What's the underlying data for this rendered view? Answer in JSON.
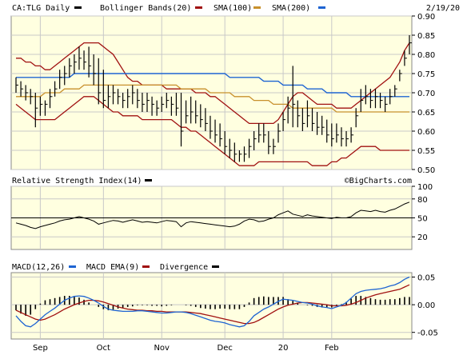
{
  "header": {
    "symbol": "CA:TLG Daily",
    "indicator1": "Bollinger Bands(20)",
    "indicator2": "SMA(100)",
    "indicator3": "SMA(200)",
    "date": "2/19/20"
  },
  "rsi_header": {
    "title": "Relative Strength Index(14)",
    "credit": "©BigCharts.com"
  },
  "macd_header": {
    "title": "MACD(12,26)",
    "ema": "MACD EMA(9)",
    "divergence": "Divergence"
  },
  "colors": {
    "background": "#ffffe0",
    "price": "#000000",
    "bollinger": "#a01010",
    "sma100": "#c8902c",
    "sma200": "#1e64d2",
    "macd": "#1e64d2",
    "macd_ema": "#a01010",
    "grid": "#c8c8c8"
  },
  "x_axis": {
    "labels": [
      "Sep",
      "Oct",
      "Nov",
      "Dec",
      "20",
      "Feb"
    ]
  },
  "chart_data": [
    {
      "type": "line",
      "panel": "price",
      "title": "CA:TLG Daily",
      "y_ticks": [
        0.5,
        0.55,
        0.6,
        0.65,
        0.7,
        0.75,
        0.8,
        0.85,
        0.9
      ],
      "y_tick_labels": [
        "0.50",
        "0.55",
        "0.60",
        "0.65",
        "0.70",
        "0.75",
        "0.80",
        "0.85",
        "0.90"
      ],
      "ylim": [
        0.5,
        0.9
      ],
      "x_labels": [
        "Sep",
        "Oct",
        "Nov",
        "Dec",
        "20",
        "Feb"
      ],
      "series": [
        {
          "name": "CA:TLG Daily",
          "kind": "ohlc",
          "high": [
            0.74,
            0.73,
            0.72,
            0.71,
            0.7,
            0.69,
            0.68,
            0.71,
            0.73,
            0.76,
            0.77,
            0.79,
            0.8,
            0.82,
            0.81,
            0.82,
            0.8,
            0.79,
            0.76,
            0.72,
            0.72,
            0.71,
            0.7,
            0.71,
            0.72,
            0.71,
            0.7,
            0.7,
            0.69,
            0.68,
            0.69,
            0.7,
            0.69,
            0.7,
            0.7,
            0.68,
            0.69,
            0.68,
            0.67,
            0.66,
            0.64,
            0.63,
            0.62,
            0.6,
            0.58,
            0.57,
            0.55,
            0.56,
            0.58,
            0.6,
            0.62,
            0.62,
            0.6,
            0.58,
            0.62,
            0.65,
            0.69,
            0.77,
            0.68,
            0.66,
            0.68,
            0.66,
            0.65,
            0.64,
            0.63,
            0.62,
            0.62,
            0.61,
            0.6,
            0.61,
            0.66,
            0.71,
            0.72,
            0.71,
            0.71,
            0.7,
            0.69,
            0.71,
            0.72,
            0.76,
            0.81,
            0.85
          ],
          "low": [
            0.7,
            0.69,
            0.68,
            0.67,
            0.61,
            0.64,
            0.64,
            0.66,
            0.69,
            0.71,
            0.72,
            0.74,
            0.75,
            0.76,
            0.76,
            0.74,
            0.72,
            0.67,
            0.66,
            0.66,
            0.67,
            0.67,
            0.66,
            0.66,
            0.67,
            0.66,
            0.65,
            0.65,
            0.64,
            0.64,
            0.65,
            0.66,
            0.64,
            0.64,
            0.56,
            0.62,
            0.62,
            0.62,
            0.61,
            0.6,
            0.58,
            0.57,
            0.56,
            0.54,
            0.53,
            0.52,
            0.52,
            0.52,
            0.53,
            0.55,
            0.57,
            0.57,
            0.54,
            0.54,
            0.57,
            0.6,
            0.62,
            0.61,
            0.61,
            0.6,
            0.61,
            0.6,
            0.59,
            0.59,
            0.57,
            0.56,
            0.57,
            0.56,
            0.56,
            0.57,
            0.61,
            0.65,
            0.67,
            0.66,
            0.66,
            0.66,
            0.65,
            0.67,
            0.69,
            0.73,
            0.77,
            0.8
          ],
          "close": [
            0.72,
            0.71,
            0.7,
            0.69,
            0.66,
            0.67,
            0.67,
            0.69,
            0.71,
            0.74,
            0.75,
            0.77,
            0.78,
            0.79,
            0.78,
            0.77,
            0.75,
            0.7,
            0.68,
            0.69,
            0.7,
            0.69,
            0.68,
            0.69,
            0.7,
            0.68,
            0.67,
            0.68,
            0.67,
            0.66,
            0.67,
            0.68,
            0.67,
            0.66,
            0.6,
            0.64,
            0.65,
            0.64,
            0.63,
            0.62,
            0.6,
            0.59,
            0.58,
            0.56,
            0.55,
            0.54,
            0.54,
            0.54,
            0.56,
            0.58,
            0.59,
            0.59,
            0.56,
            0.56,
            0.6,
            0.63,
            0.66,
            0.67,
            0.64,
            0.62,
            0.64,
            0.62,
            0.61,
            0.61,
            0.59,
            0.58,
            0.59,
            0.58,
            0.58,
            0.59,
            0.64,
            0.68,
            0.69,
            0.68,
            0.69,
            0.68,
            0.67,
            0.69,
            0.71,
            0.75,
            0.79,
            0.83
          ]
        },
        {
          "name": "Bollinger Bands(20) upper",
          "kind": "line",
          "values": [
            0.79,
            0.79,
            0.78,
            0.78,
            0.77,
            0.77,
            0.76,
            0.76,
            0.77,
            0.78,
            0.79,
            0.8,
            0.81,
            0.82,
            0.83,
            0.83,
            0.83,
            0.83,
            0.82,
            0.81,
            0.8,
            0.78,
            0.76,
            0.74,
            0.73,
            0.73,
            0.72,
            0.72,
            0.72,
            0.72,
            0.72,
            0.71,
            0.71,
            0.71,
            0.71,
            0.71,
            0.71,
            0.7,
            0.7,
            0.7,
            0.69,
            0.69,
            0.68,
            0.67,
            0.66,
            0.65,
            0.64,
            0.63,
            0.62,
            0.62,
            0.62,
            0.62,
            0.62,
            0.62,
            0.63,
            0.65,
            0.67,
            0.69,
            0.7,
            0.7,
            0.69,
            0.68,
            0.67,
            0.67,
            0.67,
            0.67,
            0.66,
            0.66,
            0.66,
            0.66,
            0.67,
            0.68,
            0.69,
            0.7,
            0.71,
            0.72,
            0.73,
            0.74,
            0.76,
            0.78,
            0.81,
            0.83
          ]
        },
        {
          "name": "Bollinger Bands(20) lower",
          "kind": "line",
          "values": [
            0.67,
            0.66,
            0.65,
            0.64,
            0.63,
            0.63,
            0.63,
            0.63,
            0.63,
            0.64,
            0.65,
            0.66,
            0.67,
            0.68,
            0.69,
            0.69,
            0.69,
            0.68,
            0.67,
            0.66,
            0.65,
            0.65,
            0.64,
            0.64,
            0.64,
            0.64,
            0.63,
            0.63,
            0.63,
            0.63,
            0.63,
            0.63,
            0.63,
            0.62,
            0.61,
            0.61,
            0.6,
            0.6,
            0.59,
            0.58,
            0.57,
            0.56,
            0.55,
            0.54,
            0.53,
            0.52,
            0.51,
            0.51,
            0.51,
            0.51,
            0.52,
            0.52,
            0.52,
            0.52,
            0.52,
            0.52,
            0.52,
            0.52,
            0.52,
            0.52,
            0.52,
            0.51,
            0.51,
            0.51,
            0.51,
            0.52,
            0.52,
            0.53,
            0.53,
            0.54,
            0.55,
            0.56,
            0.56,
            0.56,
            0.56,
            0.55,
            0.55,
            0.55,
            0.55,
            0.55,
            0.55,
            0.55
          ]
        },
        {
          "name": "SMA(100)",
          "kind": "line",
          "values": [
            0.69,
            0.69,
            0.69,
            0.69,
            0.69,
            0.69,
            0.7,
            0.7,
            0.7,
            0.7,
            0.71,
            0.71,
            0.71,
            0.71,
            0.72,
            0.72,
            0.72,
            0.72,
            0.72,
            0.72,
            0.72,
            0.72,
            0.72,
            0.72,
            0.72,
            0.72,
            0.72,
            0.72,
            0.72,
            0.72,
            0.72,
            0.72,
            0.72,
            0.72,
            0.71,
            0.71,
            0.71,
            0.71,
            0.71,
            0.71,
            0.7,
            0.7,
            0.7,
            0.7,
            0.7,
            0.69,
            0.69,
            0.69,
            0.69,
            0.68,
            0.68,
            0.68,
            0.68,
            0.67,
            0.67,
            0.67,
            0.67,
            0.66,
            0.66,
            0.66,
            0.66,
            0.66,
            0.66,
            0.66,
            0.66,
            0.66,
            0.65,
            0.65,
            0.65,
            0.65,
            0.65,
            0.65,
            0.65,
            0.65,
            0.65,
            0.65,
            0.65,
            0.65,
            0.65,
            0.65,
            0.65,
            0.65
          ]
        },
        {
          "name": "SMA(200)",
          "kind": "line",
          "values": [
            0.74,
            0.74,
            0.74,
            0.74,
            0.74,
            0.74,
            0.74,
            0.74,
            0.74,
            0.74,
            0.74,
            0.74,
            0.75,
            0.75,
            0.75,
            0.75,
            0.75,
            0.75,
            0.75,
            0.75,
            0.75,
            0.75,
            0.75,
            0.75,
            0.75,
            0.75,
            0.75,
            0.75,
            0.75,
            0.75,
            0.75,
            0.75,
            0.75,
            0.75,
            0.75,
            0.75,
            0.75,
            0.75,
            0.75,
            0.75,
            0.75,
            0.75,
            0.75,
            0.75,
            0.74,
            0.74,
            0.74,
            0.74,
            0.74,
            0.74,
            0.74,
            0.73,
            0.73,
            0.73,
            0.73,
            0.72,
            0.72,
            0.72,
            0.72,
            0.72,
            0.71,
            0.71,
            0.71,
            0.71,
            0.7,
            0.7,
            0.7,
            0.7,
            0.7,
            0.69,
            0.69,
            0.69,
            0.69,
            0.69,
            0.69,
            0.69,
            0.69,
            0.69,
            0.69,
            0.69,
            0.69,
            0.69
          ]
        }
      ]
    },
    {
      "type": "line",
      "panel": "rsi",
      "title": "Relative Strength Index(14)",
      "y_ticks": [
        20,
        50,
        80,
        100
      ],
      "y_tick_labels": [
        "20",
        "50",
        "80",
        "100"
      ],
      "ylim": [
        0,
        100
      ],
      "reference_line": 50,
      "series": [
        {
          "name": "Relative Strength Index(14)",
          "values": [
            42,
            40,
            38,
            35,
            33,
            36,
            38,
            40,
            42,
            45,
            47,
            48,
            50,
            52,
            50,
            48,
            45,
            40,
            42,
            44,
            46,
            45,
            43,
            45,
            47,
            45,
            43,
            44,
            43,
            42,
            44,
            46,
            45,
            44,
            36,
            42,
            44,
            43,
            42,
            41,
            40,
            39,
            38,
            37,
            36,
            37,
            40,
            45,
            48,
            47,
            44,
            45,
            48,
            50,
            55,
            58,
            61,
            56,
            54,
            52,
            55,
            53,
            52,
            51,
            50,
            49,
            51,
            50,
            50,
            52,
            58,
            62,
            61,
            60,
            62,
            60,
            59,
            62,
            64,
            68,
            72,
            75
          ]
        }
      ]
    },
    {
      "type": "line",
      "panel": "macd",
      "title": "MACD(12,26)",
      "y_ticks": [
        -0.05,
        0.0,
        0.05
      ],
      "y_tick_labels": [
        "-0.05",
        "0.00",
        "0.05"
      ],
      "ylim": [
        -0.062,
        0.058
      ],
      "series": [
        {
          "name": "MACD(12,26)",
          "values": [
            -0.02,
            -0.03,
            -0.038,
            -0.04,
            -0.034,
            -0.026,
            -0.018,
            -0.012,
            -0.006,
            0.001,
            0.008,
            0.012,
            0.015,
            0.016,
            0.015,
            0.012,
            0.008,
            0.003,
            -0.003,
            -0.008,
            -0.01,
            -0.011,
            -0.012,
            -0.012,
            -0.012,
            -0.011,
            -0.011,
            -0.012,
            -0.013,
            -0.014,
            -0.015,
            -0.015,
            -0.014,
            -0.013,
            -0.013,
            -0.014,
            -0.016,
            -0.019,
            -0.022,
            -0.025,
            -0.028,
            -0.03,
            -0.031,
            -0.033,
            -0.036,
            -0.038,
            -0.04,
            -0.038,
            -0.03,
            -0.02,
            -0.014,
            -0.008,
            -0.004,
            0.001,
            0.006,
            0.01,
            0.009,
            0.008,
            0.006,
            0.004,
            0.003,
            0.001,
            -0.002,
            -0.004,
            -0.005,
            -0.007,
            -0.004,
            -0.001,
            0.004,
            0.012,
            0.02,
            0.024,
            0.026,
            0.027,
            0.028,
            0.029,
            0.031,
            0.034,
            0.036,
            0.04,
            0.046,
            0.05
          ]
        },
        {
          "name": "MACD EMA(9)",
          "values": [
            -0.01,
            -0.014,
            -0.018,
            -0.022,
            -0.026,
            -0.028,
            -0.026,
            -0.022,
            -0.018,
            -0.013,
            -0.008,
            -0.004,
            0.0,
            0.003,
            0.006,
            0.008,
            0.008,
            0.007,
            0.005,
            0.002,
            -0.001,
            -0.004,
            -0.006,
            -0.008,
            -0.009,
            -0.01,
            -0.01,
            -0.011,
            -0.011,
            -0.012,
            -0.012,
            -0.013,
            -0.013,
            -0.013,
            -0.013,
            -0.013,
            -0.014,
            -0.015,
            -0.016,
            -0.018,
            -0.02,
            -0.022,
            -0.024,
            -0.026,
            -0.028,
            -0.03,
            -0.032,
            -0.034,
            -0.034,
            -0.032,
            -0.028,
            -0.023,
            -0.018,
            -0.013,
            -0.008,
            -0.004,
            -0.001,
            0.001,
            0.003,
            0.004,
            0.004,
            0.003,
            0.002,
            0.001,
            0.0,
            -0.002,
            -0.002,
            -0.002,
            -0.001,
            0.001,
            0.004,
            0.008,
            0.012,
            0.015,
            0.018,
            0.02,
            0.022,
            0.024,
            0.026,
            0.028,
            0.032,
            0.036
          ]
        },
        {
          "name": "Divergence",
          "kind": "histogram",
          "values": [
            -0.01,
            -0.016,
            -0.02,
            -0.018,
            -0.008,
            0.002,
            0.008,
            0.01,
            0.012,
            0.014,
            0.016,
            0.016,
            0.015,
            0.013,
            0.009,
            0.004,
            0.0,
            -0.004,
            -0.008,
            -0.01,
            -0.009,
            -0.007,
            -0.006,
            -0.004,
            -0.003,
            -0.001,
            -0.001,
            -0.001,
            -0.002,
            -0.002,
            -0.003,
            -0.002,
            -0.001,
            0.0,
            0.0,
            -0.001,
            -0.002,
            -0.004,
            -0.006,
            -0.007,
            -0.008,
            -0.008,
            -0.007,
            -0.007,
            -0.008,
            -0.008,
            -0.008,
            -0.004,
            0.004,
            0.012,
            0.014,
            0.015,
            0.014,
            0.014,
            0.014,
            0.014,
            0.01,
            0.007,
            0.003,
            0.0,
            -0.001,
            -0.002,
            -0.004,
            -0.005,
            -0.005,
            -0.005,
            -0.002,
            0.001,
            0.005,
            0.011,
            0.016,
            0.016,
            0.014,
            0.012,
            0.01,
            0.009,
            0.009,
            0.01,
            0.01,
            0.012,
            0.014,
            0.014
          ]
        }
      ]
    }
  ]
}
